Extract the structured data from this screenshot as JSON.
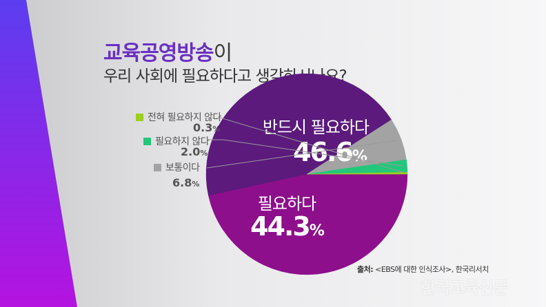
{
  "title": {
    "highlight": "교육공영방송",
    "tail": "이",
    "line2": "우리 사회에 필요하다고 생각하시나요?"
  },
  "chart_data": {
    "type": "pie",
    "title": "교육공영방송이 우리 사회에 필요하다고 생각하시나요?",
    "unit": "%",
    "series": [
      {
        "name": "반드시 필요하다",
        "value": 46.6,
        "display": "46.6",
        "color": "#8e0f8c"
      },
      {
        "name": "필요하다",
        "value": 44.3,
        "display": "44.3",
        "color": "#5b1a7c"
      },
      {
        "name": "보통이다",
        "value": 6.8,
        "display": "6.8",
        "color": "#a3a3a3"
      },
      {
        "name": "필요하지 않다",
        "value": 2.0,
        "display": "2.0",
        "color": "#22c77a"
      },
      {
        "name": "전혀 필요하지 않다",
        "value": 0.3,
        "display": "0.3",
        "color": "#9ccf1e"
      }
    ]
  },
  "source": {
    "label": "출처:",
    "text": " <EBS에 대한 인식조사>, 한국리서치"
  },
  "watermark": "한국교육신문"
}
